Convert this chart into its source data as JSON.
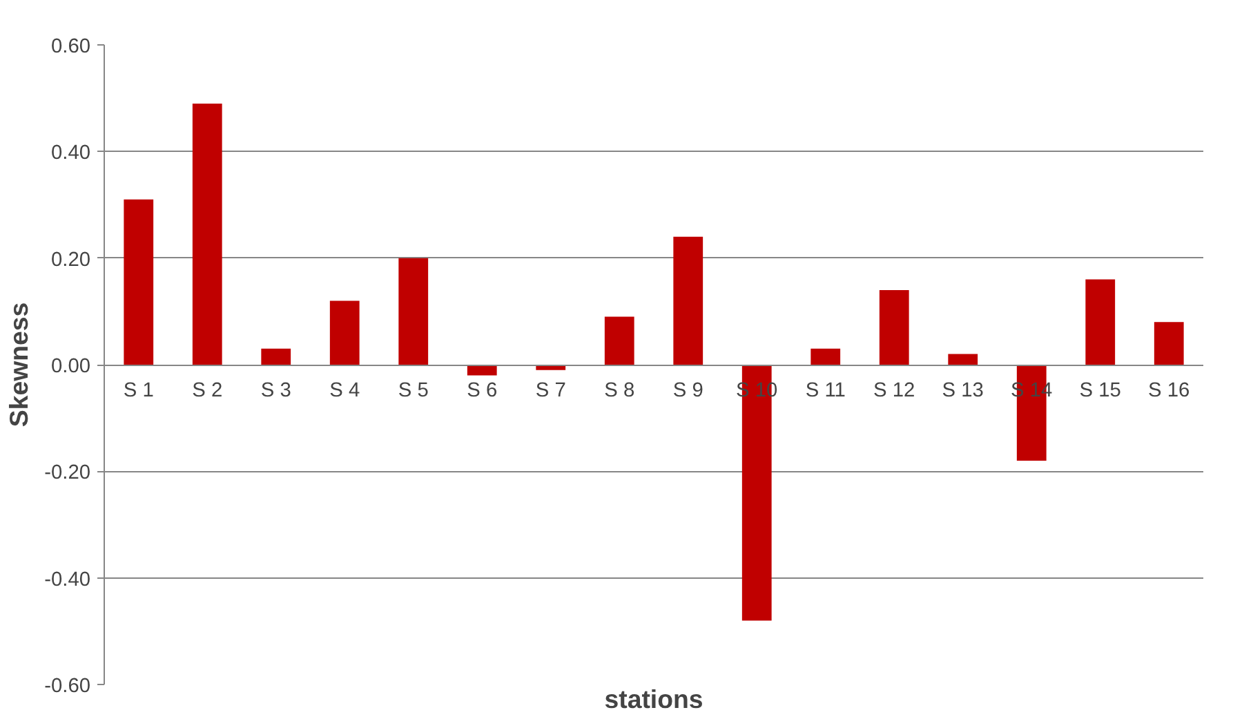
{
  "chart_data": {
    "type": "bar",
    "xlabel": "stations",
    "ylabel": "Skewness",
    "categories": [
      "S 1",
      "S 2",
      "S 3",
      "S 4",
      "S 5",
      "S 6",
      "S 7",
      "S 8",
      "S 9",
      "S 10",
      "S 11",
      "S 12",
      "S 13",
      "S 14",
      "S 15",
      "S 16"
    ],
    "series": [
      {
        "color": "#c00000",
        "values": [
          0.31,
          0.49,
          0.03,
          0.12,
          0.2,
          -0.02,
          -0.01,
          0.09,
          0.24,
          -0.48,
          0.03,
          0.14,
          0.02,
          -0.18,
          0.16,
          0.08
        ]
      }
    ],
    "ylim": [
      -0.6,
      0.6
    ],
    "yticks": [
      {
        "value": -0.6,
        "label": "-0.60"
      },
      {
        "value": -0.4,
        "label": "-0.40"
      },
      {
        "value": -0.2,
        "label": "-0.20"
      },
      {
        "value": 0,
        "label": "0.00"
      },
      {
        "value": 0.2,
        "label": "0.20"
      },
      {
        "value": 0.4,
        "label": "0.40"
      },
      {
        "value": 0.6,
        "label": "0.60"
      }
    ],
    "grid": "y"
  }
}
